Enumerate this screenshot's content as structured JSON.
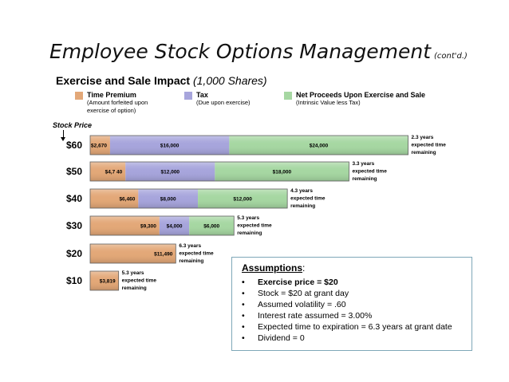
{
  "slide": {
    "title": "Employee Stock Options Management",
    "title_suffix": "(cont'd.)",
    "subtitle": "Exercise and Sale Impact",
    "subtitle_paren": "(1,000 Shares)",
    "stock_price_label": "Stock Price"
  },
  "legend": [
    {
      "name": "Time Premium",
      "desc1": "(Amount forfeited upon",
      "desc2": "exercise of option)",
      "color": "#e3a878"
    },
    {
      "name": "Tax",
      "desc1": "(Due upon exercise)",
      "desc2": "",
      "color": "#a7a5dc"
    },
    {
      "name": "Net Proceeds Upon Exercise and Sale",
      "desc1": "(Intrinsic Value less Tax)",
      "desc2": "",
      "color": "#a6d7a2"
    }
  ],
  "colors": {
    "time_premium": "#e3a878",
    "tax": "#a7a5dc",
    "net": "#a6d7a2",
    "border": "#5e5e5e"
  },
  "chart_data": {
    "type": "bar",
    "orientation": "horizontal",
    "stacked": true,
    "categories": [
      "$60",
      "$50",
      "$40",
      "$30",
      "$20",
      "$10"
    ],
    "series": [
      {
        "name": "Time Premium",
        "values": [
          2670,
          4740,
          6460,
          9300,
          11490,
          3819
        ],
        "labels": [
          "$2,670",
          "$4,7 40",
          "$6,460",
          "$9,300",
          "$11,490",
          "$3,819"
        ]
      },
      {
        "name": "Tax",
        "values": [
          16000,
          12000,
          8000,
          4000,
          0,
          0
        ],
        "labels": [
          "$16,000",
          "$12,000",
          "$8,000",
          "$4,000",
          "",
          ""
        ]
      },
      {
        "name": "Net Proceeds Upon Exercise and Sale",
        "values": [
          24000,
          18000,
          12000,
          6000,
          0,
          0
        ],
        "labels": [
          "$24,000",
          "$18,000",
          "$12,000",
          "$6,000",
          "",
          ""
        ]
      }
    ],
    "notes": [
      [
        "2.3 years",
        "expected time",
        "remaining"
      ],
      [
        "3.3 years",
        "expected time",
        "remaining"
      ],
      [
        "4.3 years",
        "expected time",
        "remaining"
      ],
      [
        "5.3 years",
        "expected time",
        "remaining"
      ],
      [
        "6.3 years",
        "expected time",
        "remaining"
      ],
      [
        "5.3 years",
        "expected time",
        "remaining"
      ]
    ]
  },
  "assumptions": {
    "heading": "Assumptions",
    "heading_suffix": ":",
    "bullet": "•",
    "items": [
      "Exercise price = $20",
      "Stock = $20 at grant day",
      "Assumed volatility = .60",
      "Interest rate assumed = 3.00%",
      "Expected time to expiration = 6.3 years at grant date",
      "Dividend = 0"
    ]
  }
}
